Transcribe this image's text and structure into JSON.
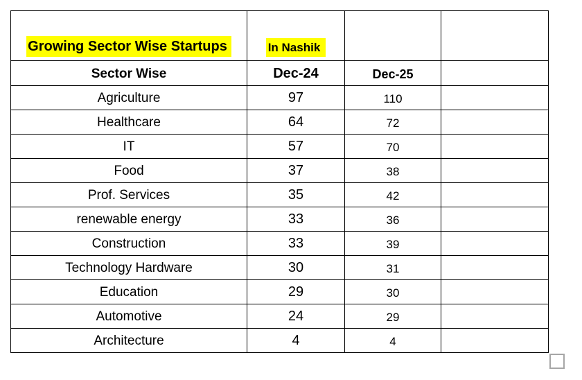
{
  "table": {
    "title": "Growing Sector Wise Startups",
    "subtitle": "In Nashik",
    "highlight_color": "#ffff00",
    "border_color": "#000000",
    "header": {
      "sector": "Sector Wise",
      "dec24": "Dec-24",
      "dec25": "Dec-25"
    },
    "rows": [
      {
        "sector": "Agriculture",
        "dec24": "97",
        "dec25": "110"
      },
      {
        "sector": "Healthcare",
        "dec24": "64",
        "dec25": "72"
      },
      {
        "sector": "IT",
        "dec24": "57",
        "dec25": "70"
      },
      {
        "sector": "Food",
        "dec24": "37",
        "dec25": "38"
      },
      {
        "sector": "Prof. Services",
        "dec24": "35",
        "dec25": "42"
      },
      {
        "sector": "renewable energy",
        "dec24": "33",
        "dec25": "36"
      },
      {
        "sector": "Construction",
        "dec24": "33",
        "dec25": "39"
      },
      {
        "sector": "Technology Hardware",
        "dec24": "30",
        "dec25": "31"
      },
      {
        "sector": "Education",
        "dec24": "29",
        "dec25": "30"
      },
      {
        "sector": "Automotive",
        "dec24": "24",
        "dec25": "29"
      },
      {
        "sector": "Architecture",
        "dec24": "4",
        "dec25": "4"
      }
    ]
  },
  "icons": {
    "selection_handle": "empty-square"
  },
  "chart_data": {
    "type": "table",
    "title": "Growing Sector Wise Startups In Nashik",
    "categories": [
      "Agriculture",
      "Healthcare",
      "IT",
      "Food",
      "Prof. Services",
      "renewable energy",
      "Construction",
      "Technology Hardware",
      "Education",
      "Automotive",
      "Architecture"
    ],
    "series": [
      {
        "name": "Dec-24",
        "values": [
          97,
          64,
          57,
          37,
          35,
          33,
          33,
          30,
          29,
          24,
          4
        ]
      },
      {
        "name": "Dec-25",
        "values": [
          110,
          72,
          70,
          38,
          42,
          36,
          39,
          31,
          30,
          29,
          4
        ]
      }
    ]
  }
}
